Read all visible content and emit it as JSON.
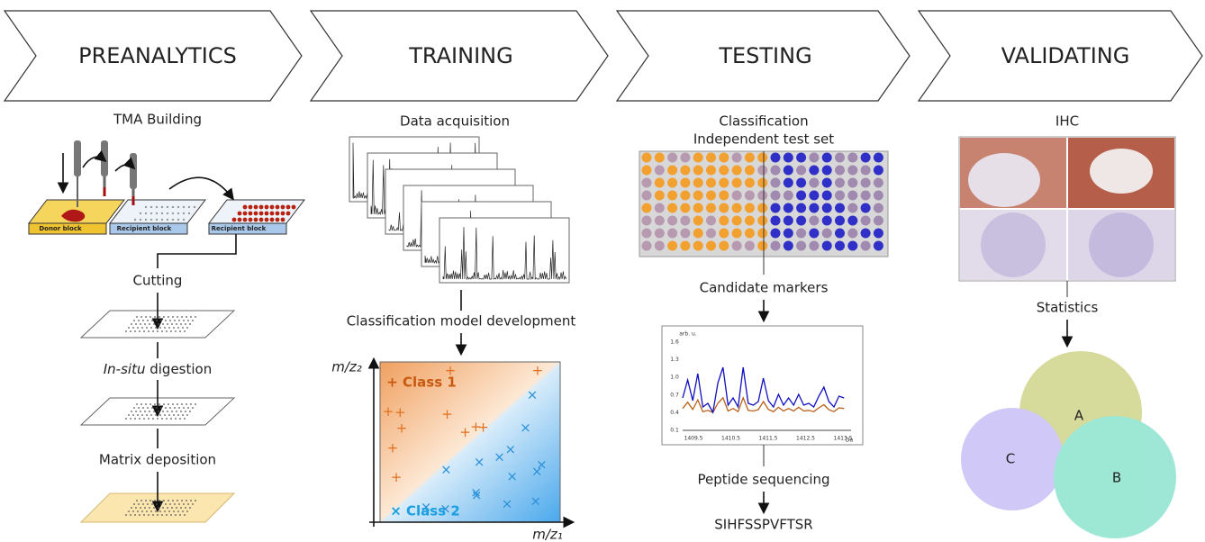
{
  "stages": [
    "PREANALYTICS",
    "TRAINING",
    "TESTING",
    "VALIDATING"
  ],
  "preanalytics": {
    "title": "TMA Building",
    "donor_block": "Donor block",
    "recipient_block_1": "Recipient block",
    "recipient_block_2": "Recipient block",
    "cutting": "Cutting",
    "digestion": {
      "italic": "In-situ",
      "rest": " digestion"
    },
    "matrix": "Matrix deposition"
  },
  "training": {
    "title": "Data acquisition",
    "model": "Classification model development",
    "y_axis": "m/z₂",
    "x_axis": "m/z₁",
    "class1": "+ Class 1",
    "class2": "× Class 2"
  },
  "testing": {
    "title_line1": "Classification",
    "title_line2": "Independent test set",
    "markers": "Candidate markers",
    "spectrum": {
      "y_unit": "arb. u.",
      "y_ticks": [
        "1.6",
        "1.3",
        "1.0",
        "0.7",
        "0.4",
        "0.1"
      ],
      "x_ticks": [
        "1409.5",
        "1410.5",
        "1411.5",
        "1412.5",
        "1413.5"
      ],
      "x_unit": "Da"
    },
    "sequencing": "Peptide sequencing",
    "peptide": "SIHFSSPVFTSR"
  },
  "validating": {
    "title": "IHC",
    "statistics": "Statistics",
    "venn": [
      "A",
      "B",
      "C"
    ]
  }
}
